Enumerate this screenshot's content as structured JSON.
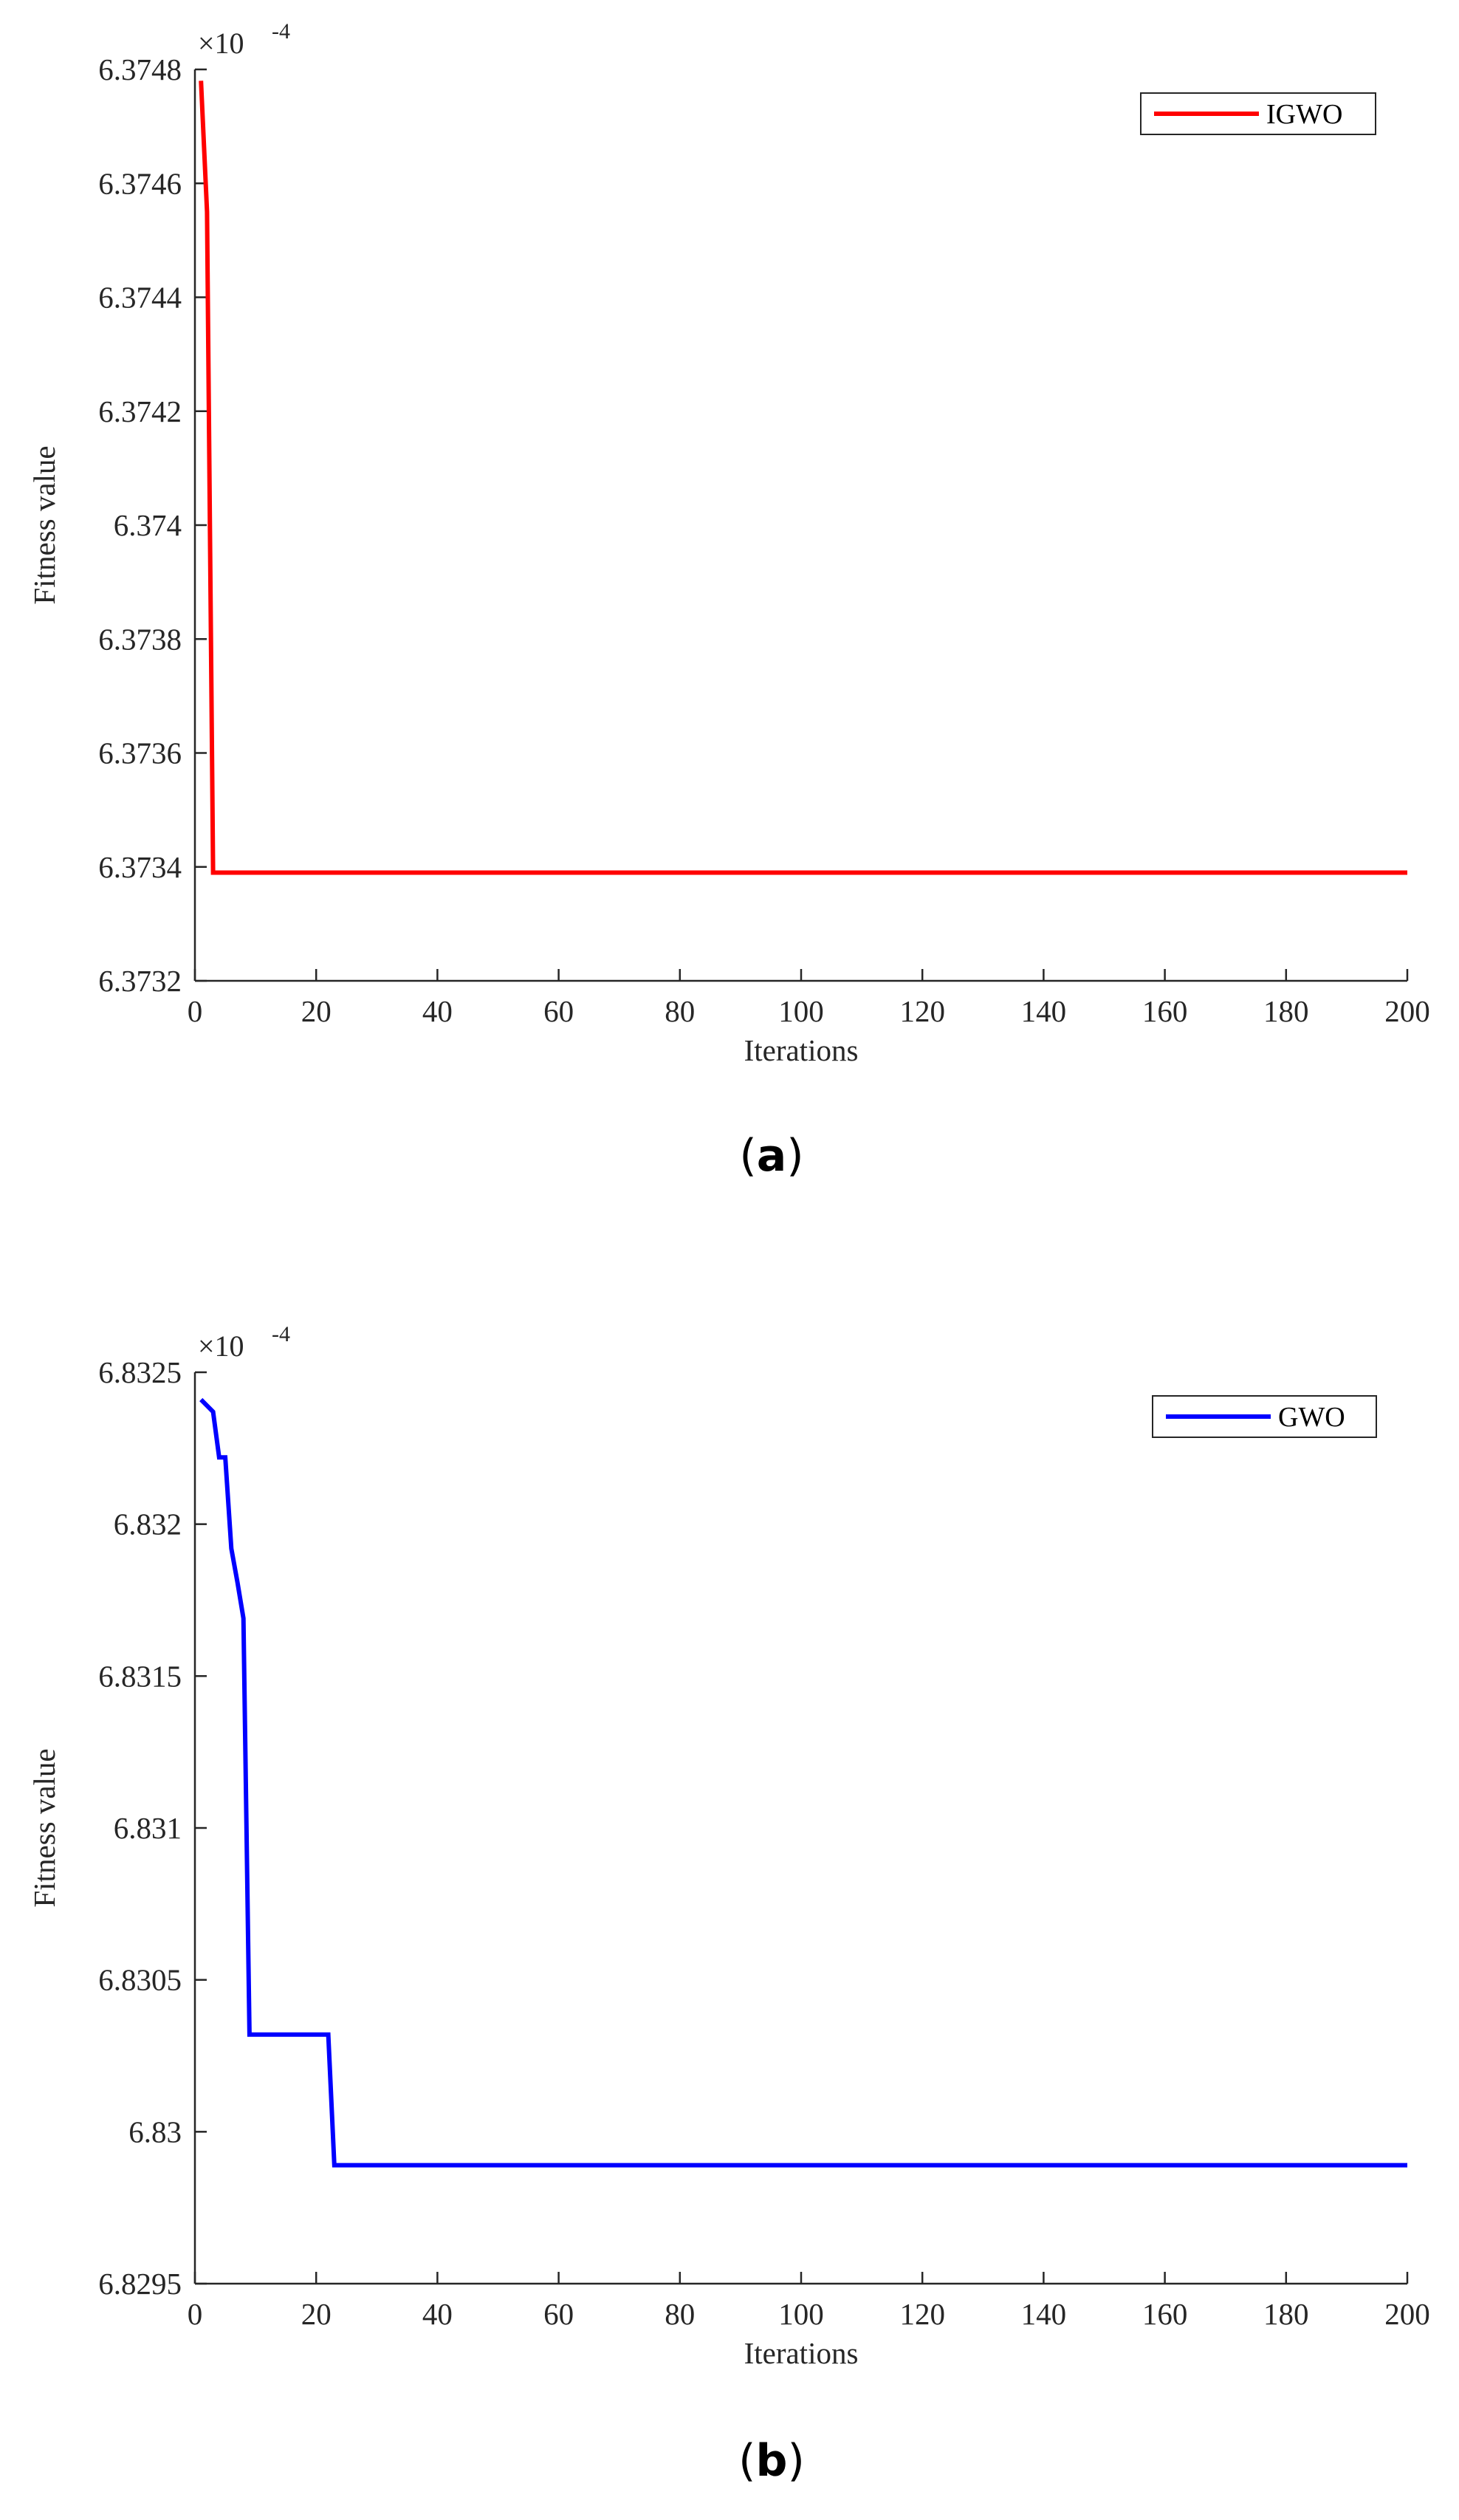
{
  "chart_data": [
    {
      "type": "line",
      "caption": "a",
      "xlabel": "Iterations",
      "ylabel": "Fitness value",
      "y_exponent_label": "×10",
      "y_exponent_power": "-4",
      "xlim": [
        0,
        200
      ],
      "ylim": [
        6.3732,
        6.3748
      ],
      "xticks": [
        0,
        20,
        40,
        60,
        80,
        100,
        120,
        140,
        160,
        180,
        200
      ],
      "xtick_labels": [
        "0",
        "20",
        "40",
        "60",
        "80",
        "100",
        "120",
        "140",
        "160",
        "180",
        "200"
      ],
      "yticks": [
        6.3732,
        6.3734,
        6.3736,
        6.3738,
        6.374,
        6.3742,
        6.3744,
        6.3746,
        6.3748
      ],
      "ytick_labels": [
        "6.3732",
        "6.3734",
        "6.3736",
        "6.3738",
        "6.374",
        "6.3742",
        "6.3744",
        "6.3746",
        "6.3748"
      ],
      "grid": false,
      "legend_position": "top-right",
      "series": [
        {
          "name": "IGWO",
          "color": "#ff0000",
          "x": [
            1,
            2,
            3,
            200
          ],
          "y": [
            6.37478,
            6.37455,
            6.37339,
            6.37339
          ]
        }
      ]
    },
    {
      "type": "line",
      "caption": "b",
      "xlabel": "Iterations",
      "ylabel": "Fitness value",
      "y_exponent_label": "×10",
      "y_exponent_power": "-4",
      "xlim": [
        0,
        200
      ],
      "ylim": [
        6.8295,
        6.8325
      ],
      "xticks": [
        0,
        20,
        40,
        60,
        80,
        100,
        120,
        140,
        160,
        180,
        200
      ],
      "xtick_labels": [
        "0",
        "20",
        "40",
        "60",
        "80",
        "100",
        "120",
        "140",
        "160",
        "180",
        "200"
      ],
      "yticks": [
        6.8295,
        6.83,
        6.8305,
        6.831,
        6.8315,
        6.832,
        6.8325
      ],
      "ytick_labels": [
        "6.8295",
        "6.83",
        "6.8305",
        "6.831",
        "6.8315",
        "6.832",
        "6.8325"
      ],
      "grid": false,
      "legend_position": "top-right",
      "series": [
        {
          "name": "GWO",
          "color": "#0000ff",
          "x": [
            1,
            2,
            3,
            4,
            5,
            6,
            7,
            8,
            9,
            22,
            23,
            200
          ],
          "y": [
            6.83241,
            6.83239,
            6.83237,
            6.83222,
            6.83222,
            6.83192,
            6.83181,
            6.83169,
            6.83032,
            6.83032,
            6.82989,
            6.82989
          ]
        }
      ]
    }
  ]
}
